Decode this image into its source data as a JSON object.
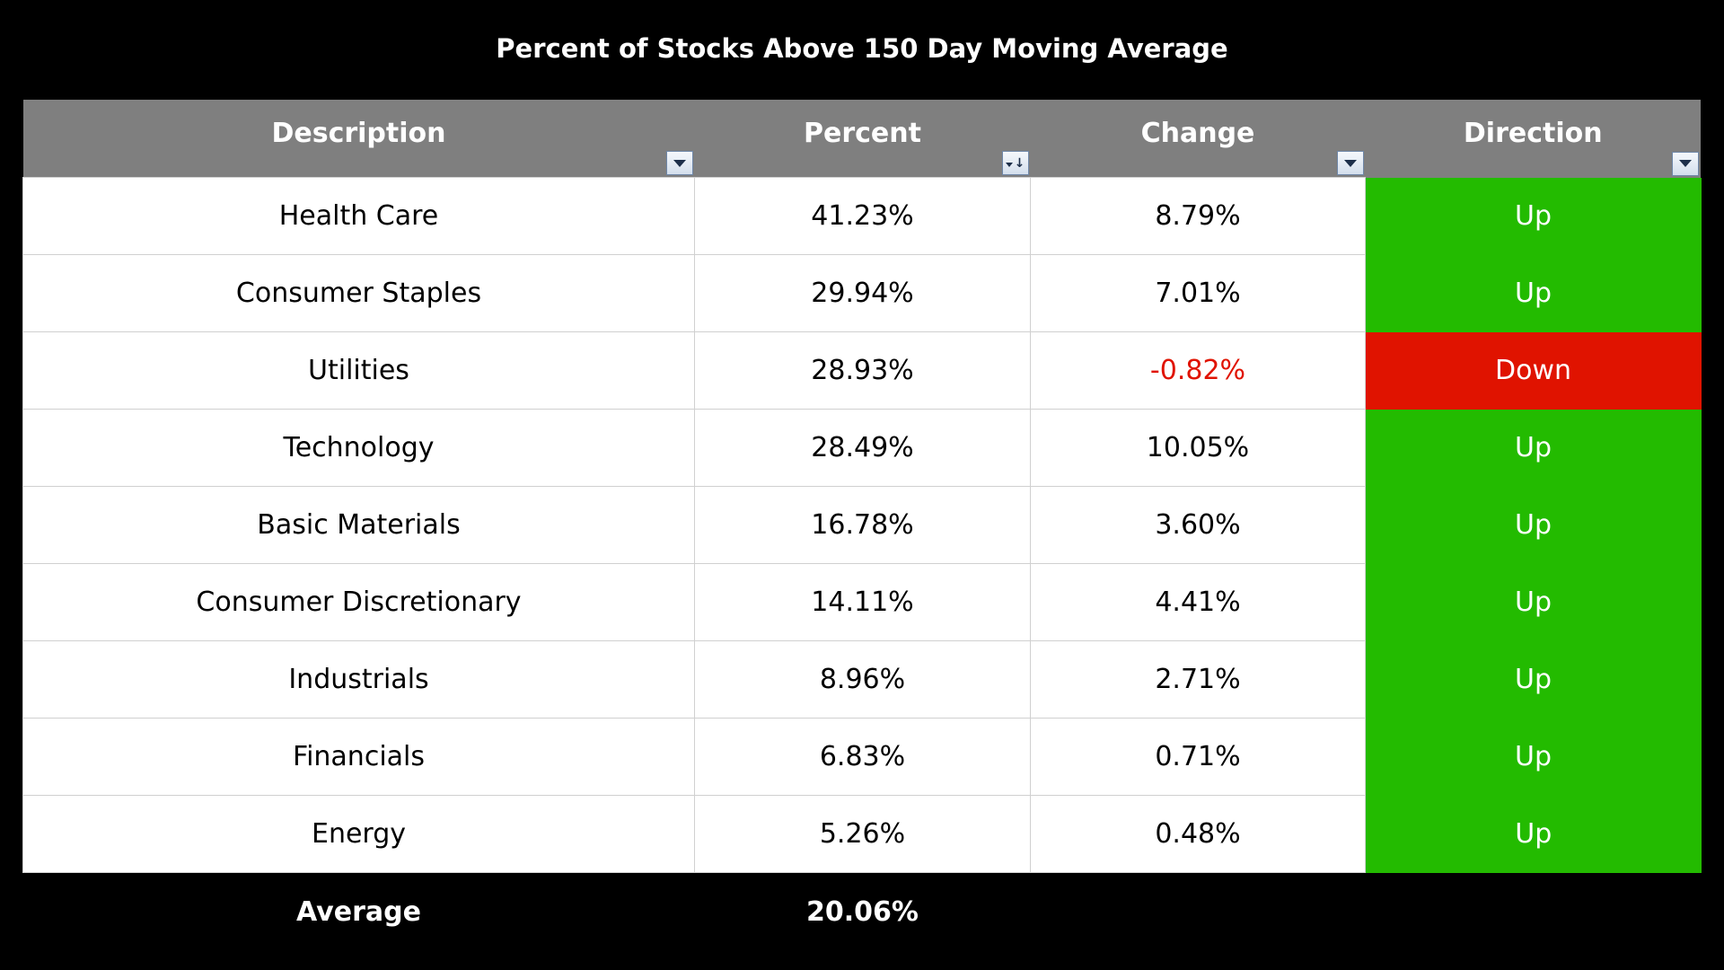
{
  "chart_data": {
    "type": "table",
    "title": "Percent of Stocks Above 150 Day Moving Average",
    "columns": [
      "Description",
      "Percent",
      "Change",
      "Direction"
    ],
    "rows": [
      {
        "description": "Health Care",
        "percent": "41.23%",
        "change": "8.79%",
        "direction": "Up"
      },
      {
        "description": "Consumer Staples",
        "percent": "29.94%",
        "change": "7.01%",
        "direction": "Up"
      },
      {
        "description": "Utilities",
        "percent": "28.93%",
        "change": "-0.82%",
        "direction": "Down"
      },
      {
        "description": "Technology",
        "percent": "28.49%",
        "change": "10.05%",
        "direction": "Up"
      },
      {
        "description": "Basic Materials",
        "percent": "16.78%",
        "change": "3.60%",
        "direction": "Up"
      },
      {
        "description": "Consumer Discretionary",
        "percent": "14.11%",
        "change": "4.41%",
        "direction": "Up"
      },
      {
        "description": "Industrials",
        "percent": "8.96%",
        "change": "2.71%",
        "direction": "Up"
      },
      {
        "description": "Financials",
        "percent": "6.83%",
        "change": "0.71%",
        "direction": "Up"
      },
      {
        "description": "Energy",
        "percent": "5.26%",
        "change": "0.48%",
        "direction": "Up"
      }
    ],
    "footer": {
      "label": "Average",
      "percent": "20.06%"
    },
    "sorted_column": "Percent"
  },
  "colors": {
    "header_bg": "#7f7f7f",
    "up": "#23bb00",
    "down": "#e01300",
    "negative_text": "#e01300",
    "background": "#000000"
  },
  "icons": {
    "filter": "filter-dropdown-icon",
    "sorted_filter": "sort-descending-filter-icon"
  }
}
